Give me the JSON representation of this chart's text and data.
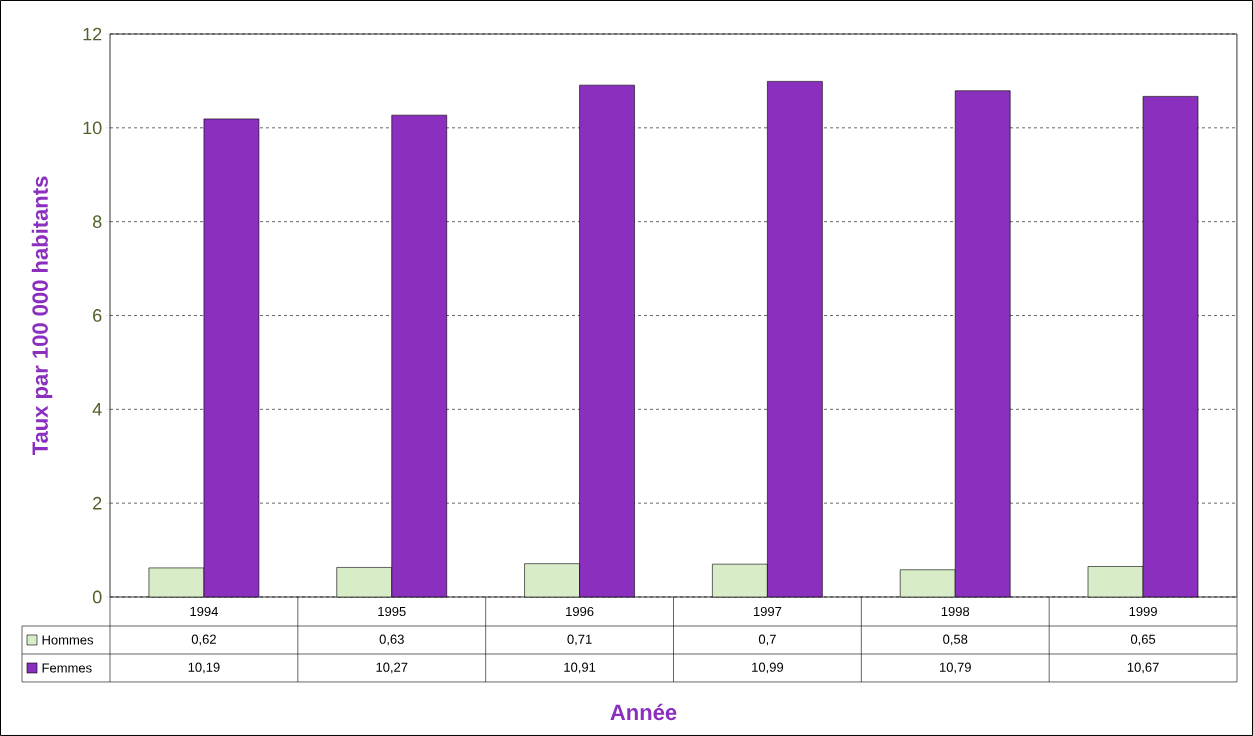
{
  "chart_data": {
    "type": "bar",
    "xlabel": "Année",
    "ylabel": "Taux par 100 000 habitants",
    "categories": [
      "1994",
      "1995",
      "1996",
      "1997",
      "1998",
      "1999"
    ],
    "series": [
      {
        "name": "Hommes",
        "color": "#d8ecc8",
        "values": [
          0.62,
          0.63,
          0.71,
          0.7,
          0.58,
          0.65
        ],
        "value_labels": [
          "0,62",
          "0,63",
          "0,71",
          "0,7",
          "0,58",
          "0,65"
        ]
      },
      {
        "name": "Femmes",
        "color": "#8a2fbe",
        "values": [
          10.19,
          10.27,
          10.91,
          10.99,
          10.79,
          10.67
        ],
        "value_labels": [
          "10,19",
          "10,27",
          "10,91",
          "10,99",
          "10,79",
          "10,67"
        ]
      }
    ],
    "ylim": [
      0,
      12
    ],
    "yticks": [
      0,
      2,
      4,
      6,
      8,
      10,
      12
    ],
    "grid": "y",
    "legend": "bottom left"
  }
}
